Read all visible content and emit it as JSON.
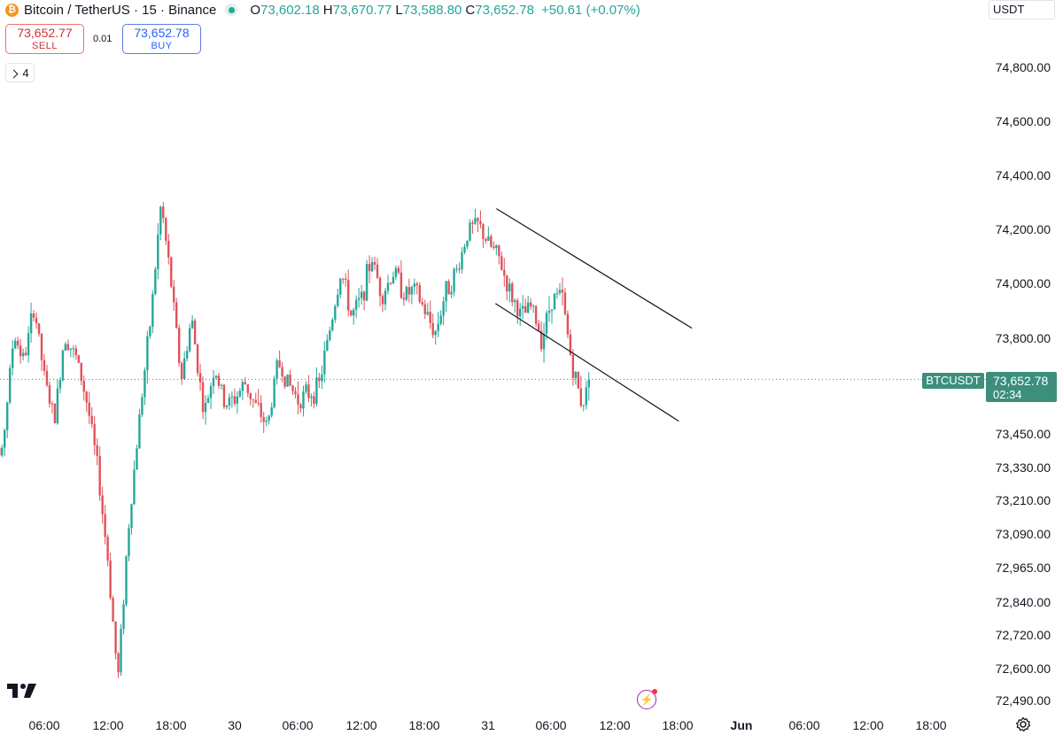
{
  "header": {
    "symbol_title": "Bitcoin / TetherUS · 15 · Binance",
    "coin_icon_glyph": "₿",
    "ohlc": {
      "open_key": "O",
      "open": "73,602.18",
      "high_key": "H",
      "high": "73,670.77",
      "low_key": "L",
      "low": "73,588.80",
      "close_key": "C",
      "close": "73,652.78",
      "change": "+50.61 (+0.07%)"
    }
  },
  "trade": {
    "sell_price": "73,652.77",
    "sell_label": "SELL",
    "spread": "0.01",
    "buy_price": "73,652.78",
    "buy_label": "BUY"
  },
  "indicators_count": "4",
  "currency": "USDT",
  "colors": {
    "up": "#26a69a",
    "down": "#e0525a",
    "tag": "#3b8f7c",
    "last_price_line": "#3b8f7c"
  },
  "price_axis": [
    "74,800.00",
    "74,600.00",
    "74,400.00",
    "74,200.00",
    "74,000.00",
    "73,800.00",
    "73,450.00",
    "73,330.00",
    "73,210.00",
    "73,090.00",
    "72,965.00",
    "72,840.00",
    "72,720.00",
    "72,600.00",
    "72,490.00"
  ],
  "time_axis": [
    "06:00",
    "12:00",
    "18:00",
    "30",
    "06:00",
    "12:00",
    "18:00",
    "31",
    "06:00",
    "12:00",
    "18:00",
    "Jun",
    "06:00",
    "12:00",
    "18:00"
  ],
  "symbol_label": "BTCUSDT",
  "last_price": "73,652.78",
  "countdown": "02:34",
  "icons": [
    "bitcoin-icon",
    "market-status-icon",
    "chevron-down-icon",
    "tradingview-logo-icon",
    "flash-icon",
    "gear-icon"
  ],
  "chart_data": {
    "type": "candlestick",
    "interval": "15",
    "last_close": 73652.78,
    "price_path": [
      [
        29.0,
        6,
        73610
      ],
      [
        29.04,
        6,
        73480
      ],
      [
        29.08,
        6,
        73350
      ],
      [
        29.13,
        6,
        73820
      ],
      [
        29.17,
        6,
        73720
      ],
      [
        29.21,
        6,
        73920
      ],
      [
        29.25,
        6,
        73660
      ],
      [
        29.29,
        6,
        73500
      ],
      [
        29.33,
        6,
        73820
      ],
      [
        29.38,
        6,
        73720
      ],
      [
        29.42,
        6,
        73560
      ],
      [
        29.46,
        6,
        73330
      ],
      [
        29.5,
        6,
        73000
      ],
      [
        29.54,
        6,
        72560
      ],
      [
        29.58,
        6,
        73100
      ],
      [
        29.63,
        6,
        73560
      ],
      [
        29.67,
        6,
        73880
      ],
      [
        29.71,
        6,
        74300
      ],
      [
        29.75,
        6,
        74000
      ],
      [
        29.79,
        6,
        73650
      ],
      [
        29.83,
        6,
        73880
      ],
      [
        29.88,
        6,
        73520
      ],
      [
        29.92,
        6,
        73700
      ],
      [
        29.96,
        6,
        73560
      ],
      [
        30.0,
        6,
        73580
      ],
      [
        30.04,
        6,
        73640
      ],
      [
        30.08,
        6,
        73560
      ],
      [
        30.13,
        6,
        73480
      ],
      [
        30.17,
        6,
        73720
      ],
      [
        30.21,
        6,
        73640
      ],
      [
        30.25,
        6,
        73580
      ],
      [
        30.29,
        6,
        73600
      ],
      [
        30.33,
        6,
        73620
      ],
      [
        30.38,
        6,
        73860
      ],
      [
        30.42,
        6,
        74050
      ],
      [
        30.46,
        6,
        73880
      ],
      [
        30.5,
        6,
        73950
      ],
      [
        30.54,
        6,
        74100
      ],
      [
        30.58,
        6,
        73960
      ],
      [
        30.63,
        6,
        74050
      ],
      [
        30.67,
        6,
        73960
      ],
      [
        30.71,
        6,
        73980
      ],
      [
        30.75,
        6,
        73900
      ],
      [
        30.79,
        6,
        73820
      ],
      [
        30.83,
        6,
        73970
      ],
      [
        30.88,
        6,
        74060
      ],
      [
        30.92,
        6,
        74200
      ],
      [
        30.96,
        6,
        74220
      ],
      [
        31.0,
        6,
        74150
      ],
      [
        31.04,
        6,
        74100
      ],
      [
        31.08,
        6,
        73980
      ],
      [
        31.13,
        6,
        73880
      ],
      [
        31.17,
        6,
        73920
      ],
      [
        31.21,
        6,
        73800
      ],
      [
        31.25,
        6,
        73950
      ],
      [
        31.29,
        6,
        73960
      ],
      [
        31.33,
        6,
        73700
      ],
      [
        31.37,
        6,
        73560
      ],
      [
        31.4,
        6,
        73652.78
      ]
    ],
    "channel": {
      "upper": [
        [
          "31 00:45",
          74280
        ],
        [
          "31 19:15",
          73840
        ]
      ],
      "lower": [
        [
          "31 00:40",
          73930
        ],
        [
          "31 18:00",
          73500
        ]
      ]
    }
  }
}
